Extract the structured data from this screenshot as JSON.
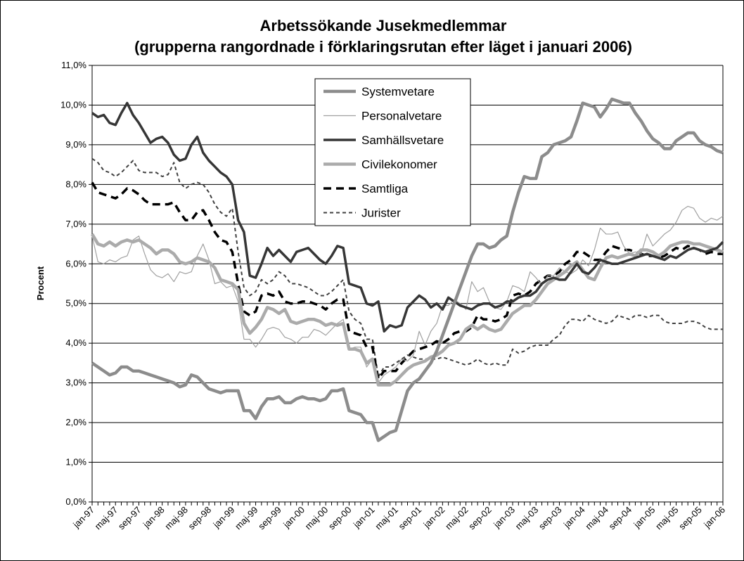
{
  "chart_data": {
    "type": "line",
    "title": "Arbetssökande Jusekmedlemmar",
    "subtitle": "(grupperna rangordnade i förklaringsrutan efter läget i januari 2006)",
    "y_label": "Procent",
    "categories": [
      "jan-97",
      null,
      null,
      null,
      "maj-97",
      null,
      null,
      null,
      "sep-97",
      null,
      null,
      null,
      "jan-98",
      null,
      null,
      null,
      "maj-98",
      null,
      null,
      null,
      "sep-98",
      null,
      null,
      null,
      "jan-99",
      null,
      null,
      null,
      "maj-99",
      null,
      null,
      null,
      "sep-99",
      null,
      null,
      null,
      "jan-00",
      null,
      null,
      null,
      "maj-00",
      null,
      null,
      null,
      "sep-00",
      null,
      null,
      null,
      "jan-01",
      null,
      null,
      null,
      "maj-01",
      null,
      null,
      null,
      "sep-01",
      null,
      null,
      null,
      "jan-02",
      null,
      null,
      null,
      "maj-02",
      null,
      null,
      null,
      "sep-02",
      null,
      null,
      null,
      "jan-03",
      null,
      null,
      null,
      "maj-03",
      null,
      null,
      null,
      "sep-03",
      null,
      null,
      null,
      "jan-04",
      null,
      null,
      null,
      "maj-04",
      null,
      null,
      null,
      "sep-04",
      null,
      null,
      null,
      "jan-05",
      null,
      null,
      null,
      "maj-05",
      null,
      null,
      null,
      "sep-05",
      null,
      null,
      null,
      "jan-06"
    ],
    "ylim": [
      0,
      11
    ],
    "yticks": [
      {
        "value": 0,
        "label": "0,0%"
      },
      {
        "value": 1,
        "label": "1,0%"
      },
      {
        "value": 2,
        "label": "2,0%"
      },
      {
        "value": 3,
        "label": "3,0%"
      },
      {
        "value": 4,
        "label": "4,0%"
      },
      {
        "value": 5,
        "label": "5,0%"
      },
      {
        "value": 6,
        "label": "6,0%"
      },
      {
        "value": 7,
        "label": "7,0%"
      },
      {
        "value": 8,
        "label": "8,0%"
      },
      {
        "value": 9,
        "label": "9,0%"
      },
      {
        "value": 10,
        "label": "10,0%"
      },
      {
        "value": 11,
        "label": "11,0%"
      }
    ],
    "grid": true,
    "legend": "top",
    "series": [
      {
        "name": "Systemvetare",
        "color": "#8c8c8c",
        "values": [
          3.5,
          3.4,
          3.3,
          3.2,
          3.25,
          3.4,
          3.4,
          3.3,
          3.3,
          3.25,
          3.2,
          3.15,
          3.1,
          3.05,
          3.0,
          2.9,
          2.95,
          3.2,
          3.15,
          3.0,
          2.85,
          2.8,
          2.75,
          2.8,
          2.8,
          2.8,
          2.3,
          2.3,
          2.1,
          2.4,
          2.6,
          2.6,
          2.65,
          2.5,
          2.5,
          2.6,
          2.65,
          2.6,
          2.6,
          2.55,
          2.6,
          2.8,
          2.8,
          2.85,
          2.3,
          2.25,
          2.2,
          2.0,
          2.0,
          1.55,
          1.65,
          1.75,
          1.8,
          2.3,
          2.8,
          3.0,
          3.1,
          3.3,
          3.5,
          3.8,
          4.2,
          4.6,
          5.0,
          5.4,
          5.8,
          6.2,
          6.5,
          6.5,
          6.4,
          6.45,
          6.6,
          6.7,
          7.3,
          7.8,
          8.2,
          8.15,
          8.15,
          8.7,
          8.8,
          9.0,
          9.05,
          9.1,
          9.2,
          9.6,
          10.05,
          10.0,
          9.95,
          9.7,
          9.9,
          10.15,
          10.1,
          10.05,
          10.05,
          9.8,
          9.6,
          9.35,
          9.15,
          9.05,
          8.9,
          8.9,
          9.1,
          9.2,
          9.3,
          9.3,
          9.1,
          9.0,
          8.95,
          8.85,
          8.8
        ]
      },
      {
        "name": "Personalvetare",
        "color": "#a0a0a0",
        "values": [
          6.7,
          6.05,
          6.0,
          6.1,
          6.05,
          6.15,
          6.2,
          6.6,
          6.7,
          6.25,
          5.85,
          5.7,
          5.65,
          5.75,
          5.55,
          5.8,
          5.75,
          5.8,
          6.2,
          6.5,
          6.1,
          5.5,
          5.55,
          5.4,
          5.45,
          5.05,
          4.1,
          4.1,
          3.9,
          4.1,
          4.35,
          4.4,
          4.35,
          4.15,
          4.1,
          4.0,
          4.15,
          4.15,
          4.35,
          4.3,
          4.2,
          4.35,
          4.5,
          4.6,
          3.85,
          3.9,
          3.9,
          3.4,
          3.6,
          3.0,
          3.2,
          3.3,
          3.4,
          3.6,
          3.55,
          3.7,
          4.3,
          3.95,
          4.3,
          4.5,
          4.95,
          4.95,
          5.1,
          5.0,
          4.85,
          5.55,
          5.3,
          5.4,
          5.05,
          4.9,
          4.85,
          5.05,
          5.45,
          5.4,
          5.3,
          5.8,
          5.65,
          5.45,
          5.7,
          5.7,
          5.9,
          5.8,
          5.75,
          5.85,
          6.1,
          5.95,
          6.35,
          6.9,
          6.75,
          6.75,
          6.8,
          6.45,
          6.25,
          6.3,
          6.25,
          6.75,
          6.45,
          6.6,
          6.75,
          6.85,
          7.05,
          7.35,
          7.45,
          7.4,
          7.15,
          7.05,
          7.15,
          7.1,
          7.2
        ]
      },
      {
        "name": "Samhällsvetare",
        "color": "#363636",
        "values": [
          9.8,
          9.7,
          9.75,
          9.55,
          9.5,
          9.8,
          10.05,
          9.75,
          9.55,
          9.3,
          9.05,
          9.15,
          9.2,
          9.05,
          8.75,
          8.6,
          8.65,
          9.0,
          9.2,
          8.8,
          8.6,
          8.45,
          8.3,
          8.2,
          8.0,
          7.1,
          6.8,
          5.7,
          5.65,
          6.0,
          6.4,
          6.2,
          6.35,
          6.2,
          6.05,
          6.3,
          6.35,
          6.4,
          6.25,
          6.1,
          6.0,
          6.2,
          6.45,
          6.4,
          5.5,
          5.45,
          5.4,
          5.0,
          4.95,
          5.05,
          4.3,
          4.45,
          4.4,
          4.45,
          4.9,
          5.05,
          5.2,
          5.1,
          4.9,
          5.0,
          4.85,
          5.15,
          5.05,
          4.95,
          4.9,
          4.85,
          4.95,
          5.0,
          5.0,
          4.9,
          4.95,
          5.05,
          5.05,
          5.15,
          5.2,
          5.2,
          5.3,
          5.5,
          5.6,
          5.65,
          5.6,
          5.6,
          5.8,
          6.0,
          5.8,
          5.75,
          5.9,
          6.1,
          6.05,
          6.0,
          6.0,
          6.05,
          6.1,
          6.15,
          6.2,
          6.25,
          6.2,
          6.15,
          6.1,
          6.2,
          6.15,
          6.25,
          6.35,
          6.4,
          6.35,
          6.3,
          6.35,
          6.4,
          6.55
        ]
      },
      {
        "name": "Civilekonomer",
        "color": "#ababab",
        "values": [
          6.75,
          6.5,
          6.45,
          6.55,
          6.45,
          6.55,
          6.6,
          6.55,
          6.6,
          6.5,
          6.4,
          6.25,
          6.35,
          6.35,
          6.25,
          6.05,
          6.0,
          6.05,
          6.15,
          6.1,
          6.05,
          5.9,
          5.6,
          5.55,
          5.5,
          5.35,
          4.5,
          4.25,
          4.4,
          4.6,
          4.9,
          4.85,
          4.75,
          4.85,
          4.55,
          4.5,
          4.55,
          4.6,
          4.6,
          4.55,
          4.45,
          4.5,
          4.45,
          4.5,
          3.85,
          3.85,
          3.8,
          3.5,
          3.6,
          2.95,
          2.95,
          2.95,
          3.05,
          3.2,
          3.35,
          3.45,
          3.5,
          3.55,
          3.65,
          3.7,
          3.8,
          3.95,
          4.0,
          4.1,
          4.35,
          4.45,
          4.35,
          4.45,
          4.35,
          4.3,
          4.35,
          4.55,
          4.75,
          4.85,
          4.95,
          4.95,
          5.1,
          5.3,
          5.5,
          5.6,
          5.7,
          5.8,
          5.95,
          6.05,
          5.85,
          5.65,
          5.6,
          5.9,
          6.15,
          6.2,
          6.15,
          6.2,
          6.25,
          6.2,
          6.35,
          6.35,
          6.3,
          6.2,
          6.3,
          6.45,
          6.5,
          6.55,
          6.55,
          6.5,
          6.5,
          6.45,
          6.4,
          6.35,
          6.3
        ]
      },
      {
        "name": "Samtliga",
        "color": "#000000",
        "values": [
          8.05,
          7.8,
          7.75,
          7.7,
          7.65,
          7.75,
          7.9,
          7.85,
          7.75,
          7.6,
          7.5,
          7.5,
          7.5,
          7.5,
          7.55,
          7.3,
          7.1,
          7.1,
          7.3,
          7.35,
          7.1,
          6.8,
          6.6,
          6.55,
          6.3,
          5.5,
          4.8,
          4.7,
          4.8,
          5.2,
          5.25,
          5.2,
          5.3,
          5.05,
          5.0,
          5.0,
          5.05,
          5.05,
          5.0,
          4.95,
          4.85,
          5.0,
          5.1,
          5.1,
          4.3,
          4.25,
          4.2,
          3.9,
          3.9,
          3.1,
          3.3,
          3.3,
          3.3,
          3.5,
          3.65,
          3.8,
          3.85,
          3.9,
          3.95,
          4.05,
          4.0,
          4.1,
          4.25,
          4.3,
          4.3,
          4.4,
          4.7,
          4.6,
          4.6,
          4.55,
          4.6,
          4.7,
          5.2,
          5.25,
          5.2,
          5.3,
          5.5,
          5.6,
          5.7,
          5.7,
          5.8,
          6.0,
          6.1,
          6.3,
          6.3,
          6.2,
          6.1,
          6.1,
          6.3,
          6.45,
          6.4,
          6.35,
          6.35,
          6.3,
          6.25,
          6.2,
          6.2,
          6.15,
          6.2,
          6.3,
          6.4,
          6.35,
          6.45,
          6.4,
          6.35,
          6.25,
          6.3,
          6.25,
          6.25
        ]
      },
      {
        "name": "Jurister",
        "color": "#404040",
        "values": [
          8.65,
          8.55,
          8.35,
          8.3,
          8.2,
          8.3,
          8.45,
          8.6,
          8.35,
          8.3,
          8.3,
          8.3,
          8.2,
          8.25,
          8.55,
          8.05,
          7.9,
          8.0,
          8.05,
          8.0,
          7.8,
          7.5,
          7.3,
          7.2,
          7.4,
          6.3,
          5.4,
          5.2,
          5.3,
          5.6,
          5.5,
          5.6,
          5.8,
          5.7,
          5.5,
          5.5,
          5.45,
          5.4,
          5.3,
          5.2,
          5.2,
          5.3,
          5.45,
          5.6,
          4.8,
          4.6,
          4.5,
          4.1,
          4.1,
          3.15,
          3.4,
          3.4,
          3.5,
          3.6,
          3.7,
          3.65,
          3.6,
          3.6,
          3.6,
          3.6,
          3.65,
          3.6,
          3.55,
          3.5,
          3.45,
          3.5,
          3.6,
          3.5,
          3.45,
          3.5,
          3.45,
          3.45,
          3.85,
          3.75,
          3.8,
          3.9,
          3.95,
          3.95,
          3.95,
          4.1,
          4.2,
          4.45,
          4.6,
          4.6,
          4.55,
          4.7,
          4.6,
          4.55,
          4.5,
          4.55,
          4.7,
          4.65,
          4.6,
          4.7,
          4.7,
          4.65,
          4.7,
          4.7,
          4.55,
          4.5,
          4.5,
          4.5,
          4.55,
          4.55,
          4.5,
          4.4,
          4.35,
          4.35,
          4.35
        ]
      }
    ]
  }
}
